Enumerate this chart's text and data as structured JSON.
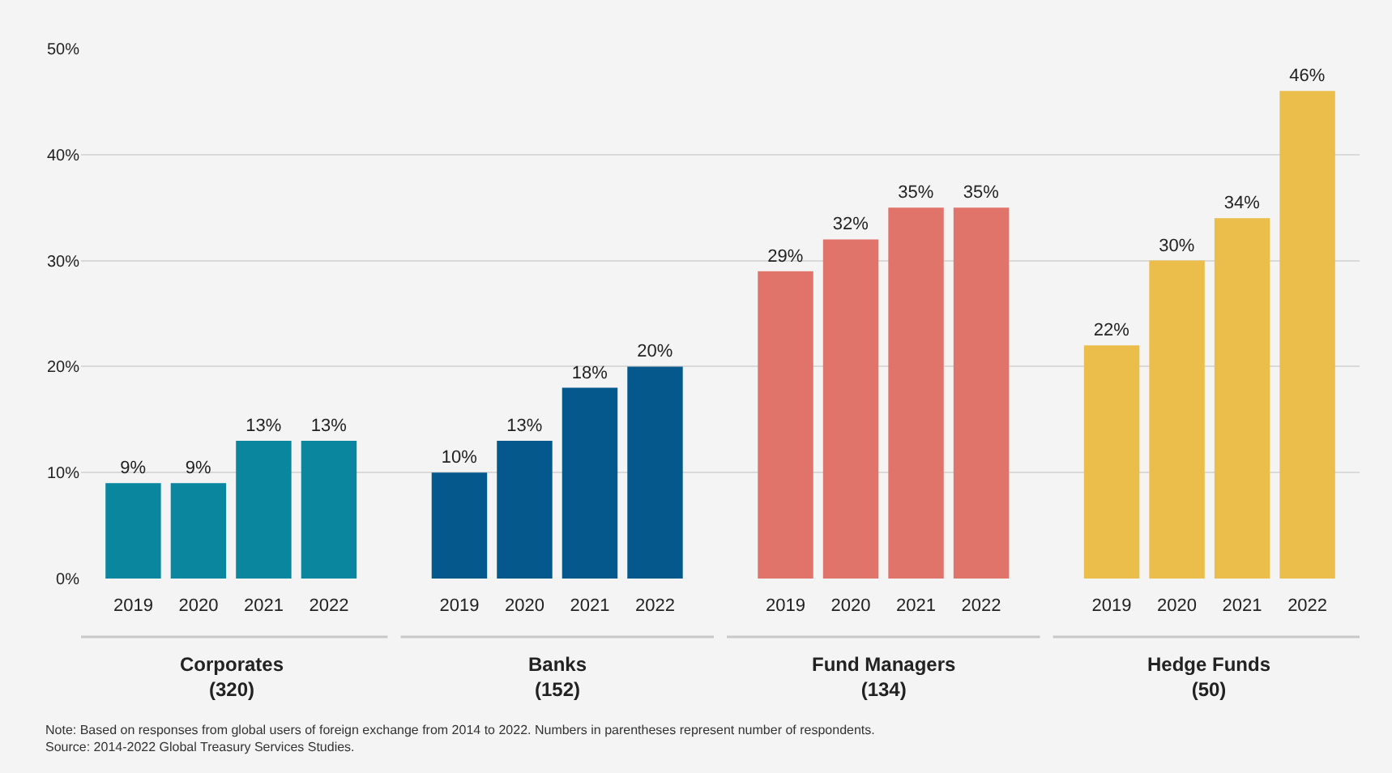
{
  "chart_data": {
    "type": "bar",
    "categories": [
      "2019",
      "2020",
      "2021",
      "2022",
      null,
      "2019",
      "2020",
      "2021",
      "2022",
      null,
      "2019",
      "2020",
      "2021",
      "2022",
      null,
      "2019",
      "2020",
      "2021",
      "2022"
    ],
    "values": [
      9,
      9,
      13,
      13,
      null,
      10,
      13,
      18,
      20,
      null,
      29,
      32,
      35,
      35,
      null,
      22,
      30,
      34,
      46
    ],
    "value_labels": [
      "9%",
      "9%",
      "13%",
      "13%",
      null,
      "10%",
      "13%",
      "18%",
      "20%",
      null,
      "29%",
      "32%",
      "35%",
      "35%",
      null,
      "22%",
      "30%",
      "34%",
      "46%"
    ],
    "colors": [
      "#0a879f",
      "#0a879f",
      "#0a879f",
      "#0a879f",
      "#f4f4f4",
      "#05588c",
      "#05588c",
      "#05588c",
      "#05588c",
      "#f4f4f4",
      "#e0736a",
      "#e0736a",
      "#e0736a",
      "#e0736a",
      "#f4f4f4",
      "#ebbd4a",
      "#ebbd4a",
      "#ebbd4a",
      "#ebbd4a"
    ],
    "ylim": [
      0,
      50
    ],
    "yticks": [
      {
        "value": 0,
        "label": "0%"
      },
      {
        "value": 10,
        "label": "10%"
      },
      {
        "value": 20,
        "label": "20%"
      },
      {
        "value": 30,
        "label": "30%"
      },
      {
        "value": 40,
        "label": "40%"
      },
      {
        "value": 50,
        "label": "50%"
      }
    ],
    "grid": "y",
    "annotations": [
      "Corporates\n(320)",
      "Banks\n(152)",
      "Fund Managers\n(134)",
      "Hedge Funds\n(50)",
      "Note: Based on responses from global users of foreign exchange from 2014 to 2022. Numbers in parentheses represent number of respondents.\nSource: 2014-2022 Global Treasury Services Studies."
    ]
  }
}
